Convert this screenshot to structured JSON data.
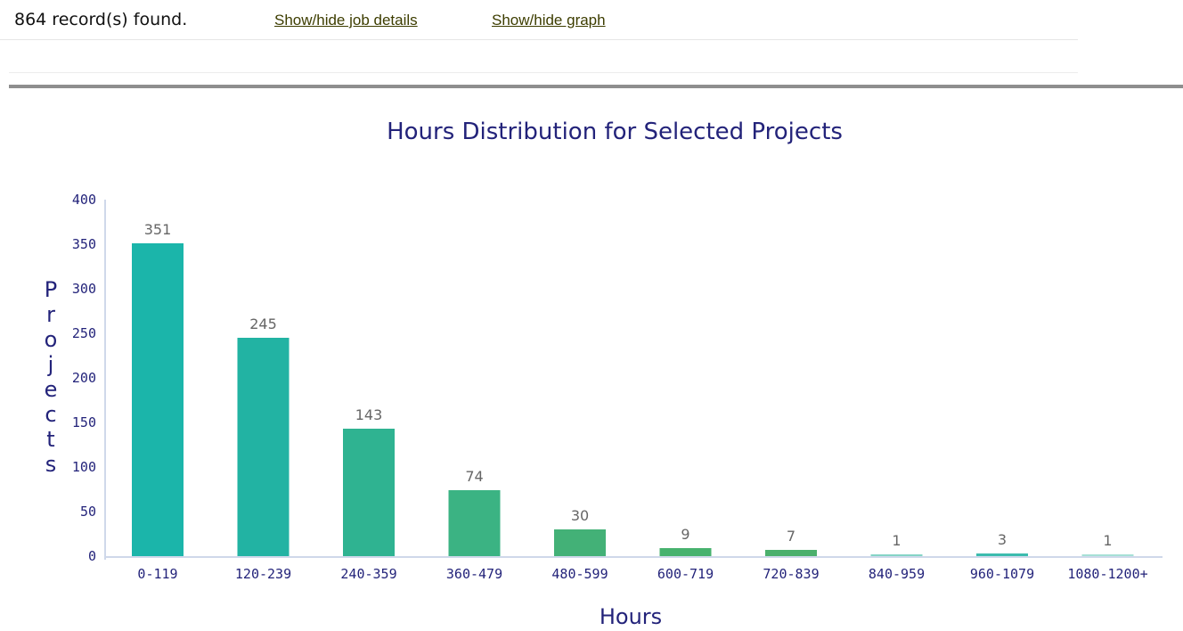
{
  "header": {
    "record_count": "864 record(s) found.",
    "toggle_details_label": "Show/hide job details",
    "toggle_graph_label": "Show/hide graph"
  },
  "colors": {
    "axis_text": "#23237a",
    "data_label": "#666666",
    "axis_line": "#cfd8ea",
    "bar_gradient": [
      "#1bb5aa",
      "#22b3a3",
      "#2fb391",
      "#3bb383",
      "#43b177",
      "#47b26e",
      "#4bb06c",
      "#85d4c6",
      "#3cbcae",
      "#a6e0d6"
    ]
  },
  "chart_data": {
    "type": "bar",
    "title": "Hours Distribution for Selected Projects",
    "xlabel": "Hours",
    "ylabel": "Projects",
    "categories": [
      "0-119",
      "120-239",
      "240-359",
      "360-479",
      "480-599",
      "600-719",
      "720-839",
      "840-959",
      "960-1079",
      "1080-1200+"
    ],
    "values": [
      351,
      245,
      143,
      74,
      30,
      9,
      7,
      1,
      3,
      1
    ],
    "ylim": [
      0,
      400
    ],
    "yticks": [
      0,
      50,
      100,
      150,
      200,
      250,
      300,
      350,
      400
    ],
    "data_labels": true,
    "grid": false,
    "legend": "none"
  }
}
